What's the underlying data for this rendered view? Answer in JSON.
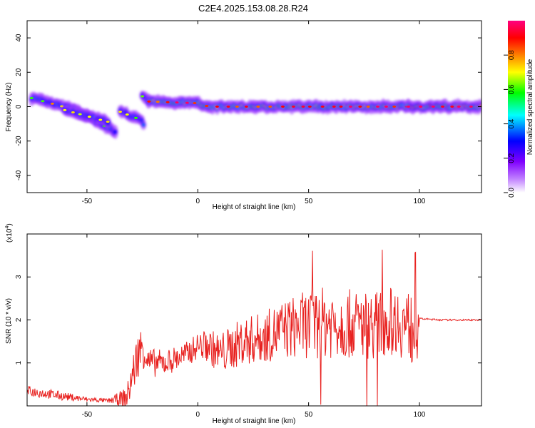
{
  "figure": {
    "title": "C2E4.2025.153.08.28.R24"
  },
  "chart_data": [
    {
      "type": "heatmap",
      "xlabel": "Height of straight line (km)",
      "ylabel": "Frequency (Hz)",
      "xlim": [
        -77,
        128
      ],
      "ylim": [
        -50,
        50
      ],
      "xticks": [
        -50,
        0,
        50,
        100
      ],
      "yticks": [
        -40,
        -20,
        0,
        20,
        40
      ],
      "grid": false,
      "colorbar": {
        "label": "Normalized spectral amplitude",
        "range": [
          0.0,
          1.0
        ],
        "ticks": [
          "0.0",
          "0.2",
          "0.4",
          "0.6",
          "0.8"
        ],
        "tick_values": [
          0.0,
          0.2,
          0.4,
          0.6,
          0.8
        ],
        "colormap": [
          "#ffffff",
          "#8000ff",
          "#0000ff",
          "#00ffff",
          "#00ff00",
          "#ffff00",
          "#ff8000",
          "#ff0000",
          "#ff0080"
        ]
      },
      "ridges": [
        {
          "x": [
            -75,
            -55,
            -37
          ],
          "f": [
            5,
            -2,
            -15
          ],
          "amplitude": 0.35
        },
        {
          "x": [
            -60,
            -40
          ],
          "f": [
            -2,
            -9
          ],
          "amplitude": 0.3
        },
        {
          "x": [
            -35,
            -25,
            -24
          ],
          "f": [
            -3,
            -8,
            -12
          ],
          "amplitude": 0.3
        },
        {
          "x": [
            -25,
            -22
          ],
          "f": [
            6,
            3
          ],
          "amplitude": 0.3
        },
        {
          "x": [
            -22,
            0,
            5,
            95
          ],
          "f": [
            3,
            2,
            0,
            0
          ],
          "amplitude": 0.6
        },
        {
          "x": [
            95,
            128
          ],
          "f": [
            0,
            0
          ],
          "amplitude": 0.7
        }
      ]
    },
    {
      "type": "line",
      "xlabel": "Height of straight line (km)",
      "ylabel": "SNR (10 * v/v)",
      "yscale_label": "(x10",
      "yscale_exp": "4",
      "yscale_close": ")",
      "xlim": [
        -77,
        128
      ],
      "ylim": [
        0,
        4
      ],
      "xticks": [
        -50,
        0,
        50,
        100
      ],
      "yticks": [
        1,
        2,
        3
      ],
      "grid": false,
      "color": "#e8211f",
      "series": [
        {
          "x": [
            -77,
            -70,
            -60,
            -50,
            -40,
            -32,
            -30,
            -27,
            -25,
            -22,
            -15,
            -5,
            0,
            5,
            10,
            20,
            30,
            40,
            50,
            60,
            70,
            80,
            90,
            96,
            99,
            100,
            110,
            120,
            128
          ],
          "y": [
            0.35,
            0.3,
            0.22,
            0.15,
            0.12,
            0.2,
            0.6,
            1.2,
            1.4,
            1.0,
            1.0,
            1.2,
            1.4,
            1.4,
            1.2,
            1.5,
            1.6,
            1.8,
            1.9,
            1.95,
            1.9,
            1.9,
            2.0,
            1.8,
            1.9,
            2.03,
            2.0,
            2.0,
            2.0
          ],
          "noise": [
            0.12,
            0.12,
            0.1,
            0.06,
            0.05,
            0.25,
            0.45,
            0.55,
            0.5,
            0.35,
            0.3,
            0.3,
            0.3,
            0.4,
            0.5,
            0.55,
            0.6,
            0.7,
            0.8,
            0.85,
            0.8,
            0.8,
            0.8,
            0.9,
            0.9,
            0.02,
            0.02,
            0.02,
            0.02
          ]
        }
      ]
    }
  ]
}
